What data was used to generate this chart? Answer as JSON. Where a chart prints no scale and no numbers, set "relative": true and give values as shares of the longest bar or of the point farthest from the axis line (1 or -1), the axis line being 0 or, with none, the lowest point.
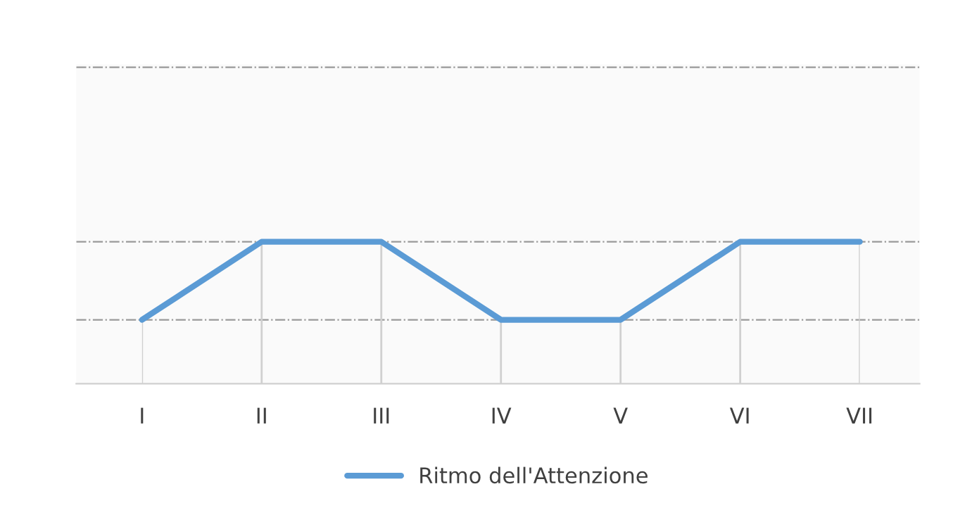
{
  "chart_data": {
    "type": "line",
    "relative": true,
    "categories": [
      "I",
      "II",
      "III",
      "IV",
      "V",
      "VI",
      "VII"
    ],
    "grid": "x",
    "series": [
      {
        "name": "Ritmo dell'Attenzione",
        "color": "#5b9bd5",
        "values": [
          0.45,
          1,
          1,
          0.45,
          0.45,
          1,
          1
        ]
      }
    ],
    "legend": "bottom",
    "ref_lines": [
      {
        "axis": "y",
        "value": 0.45,
        "color": "#999999"
      },
      {
        "axis": "y",
        "value": 1,
        "color": "#999999"
      },
      {
        "axis": "y",
        "value": 2.23,
        "color": "#999999"
      }
    ],
    "marker": "none",
    "line_style": "solid"
  }
}
